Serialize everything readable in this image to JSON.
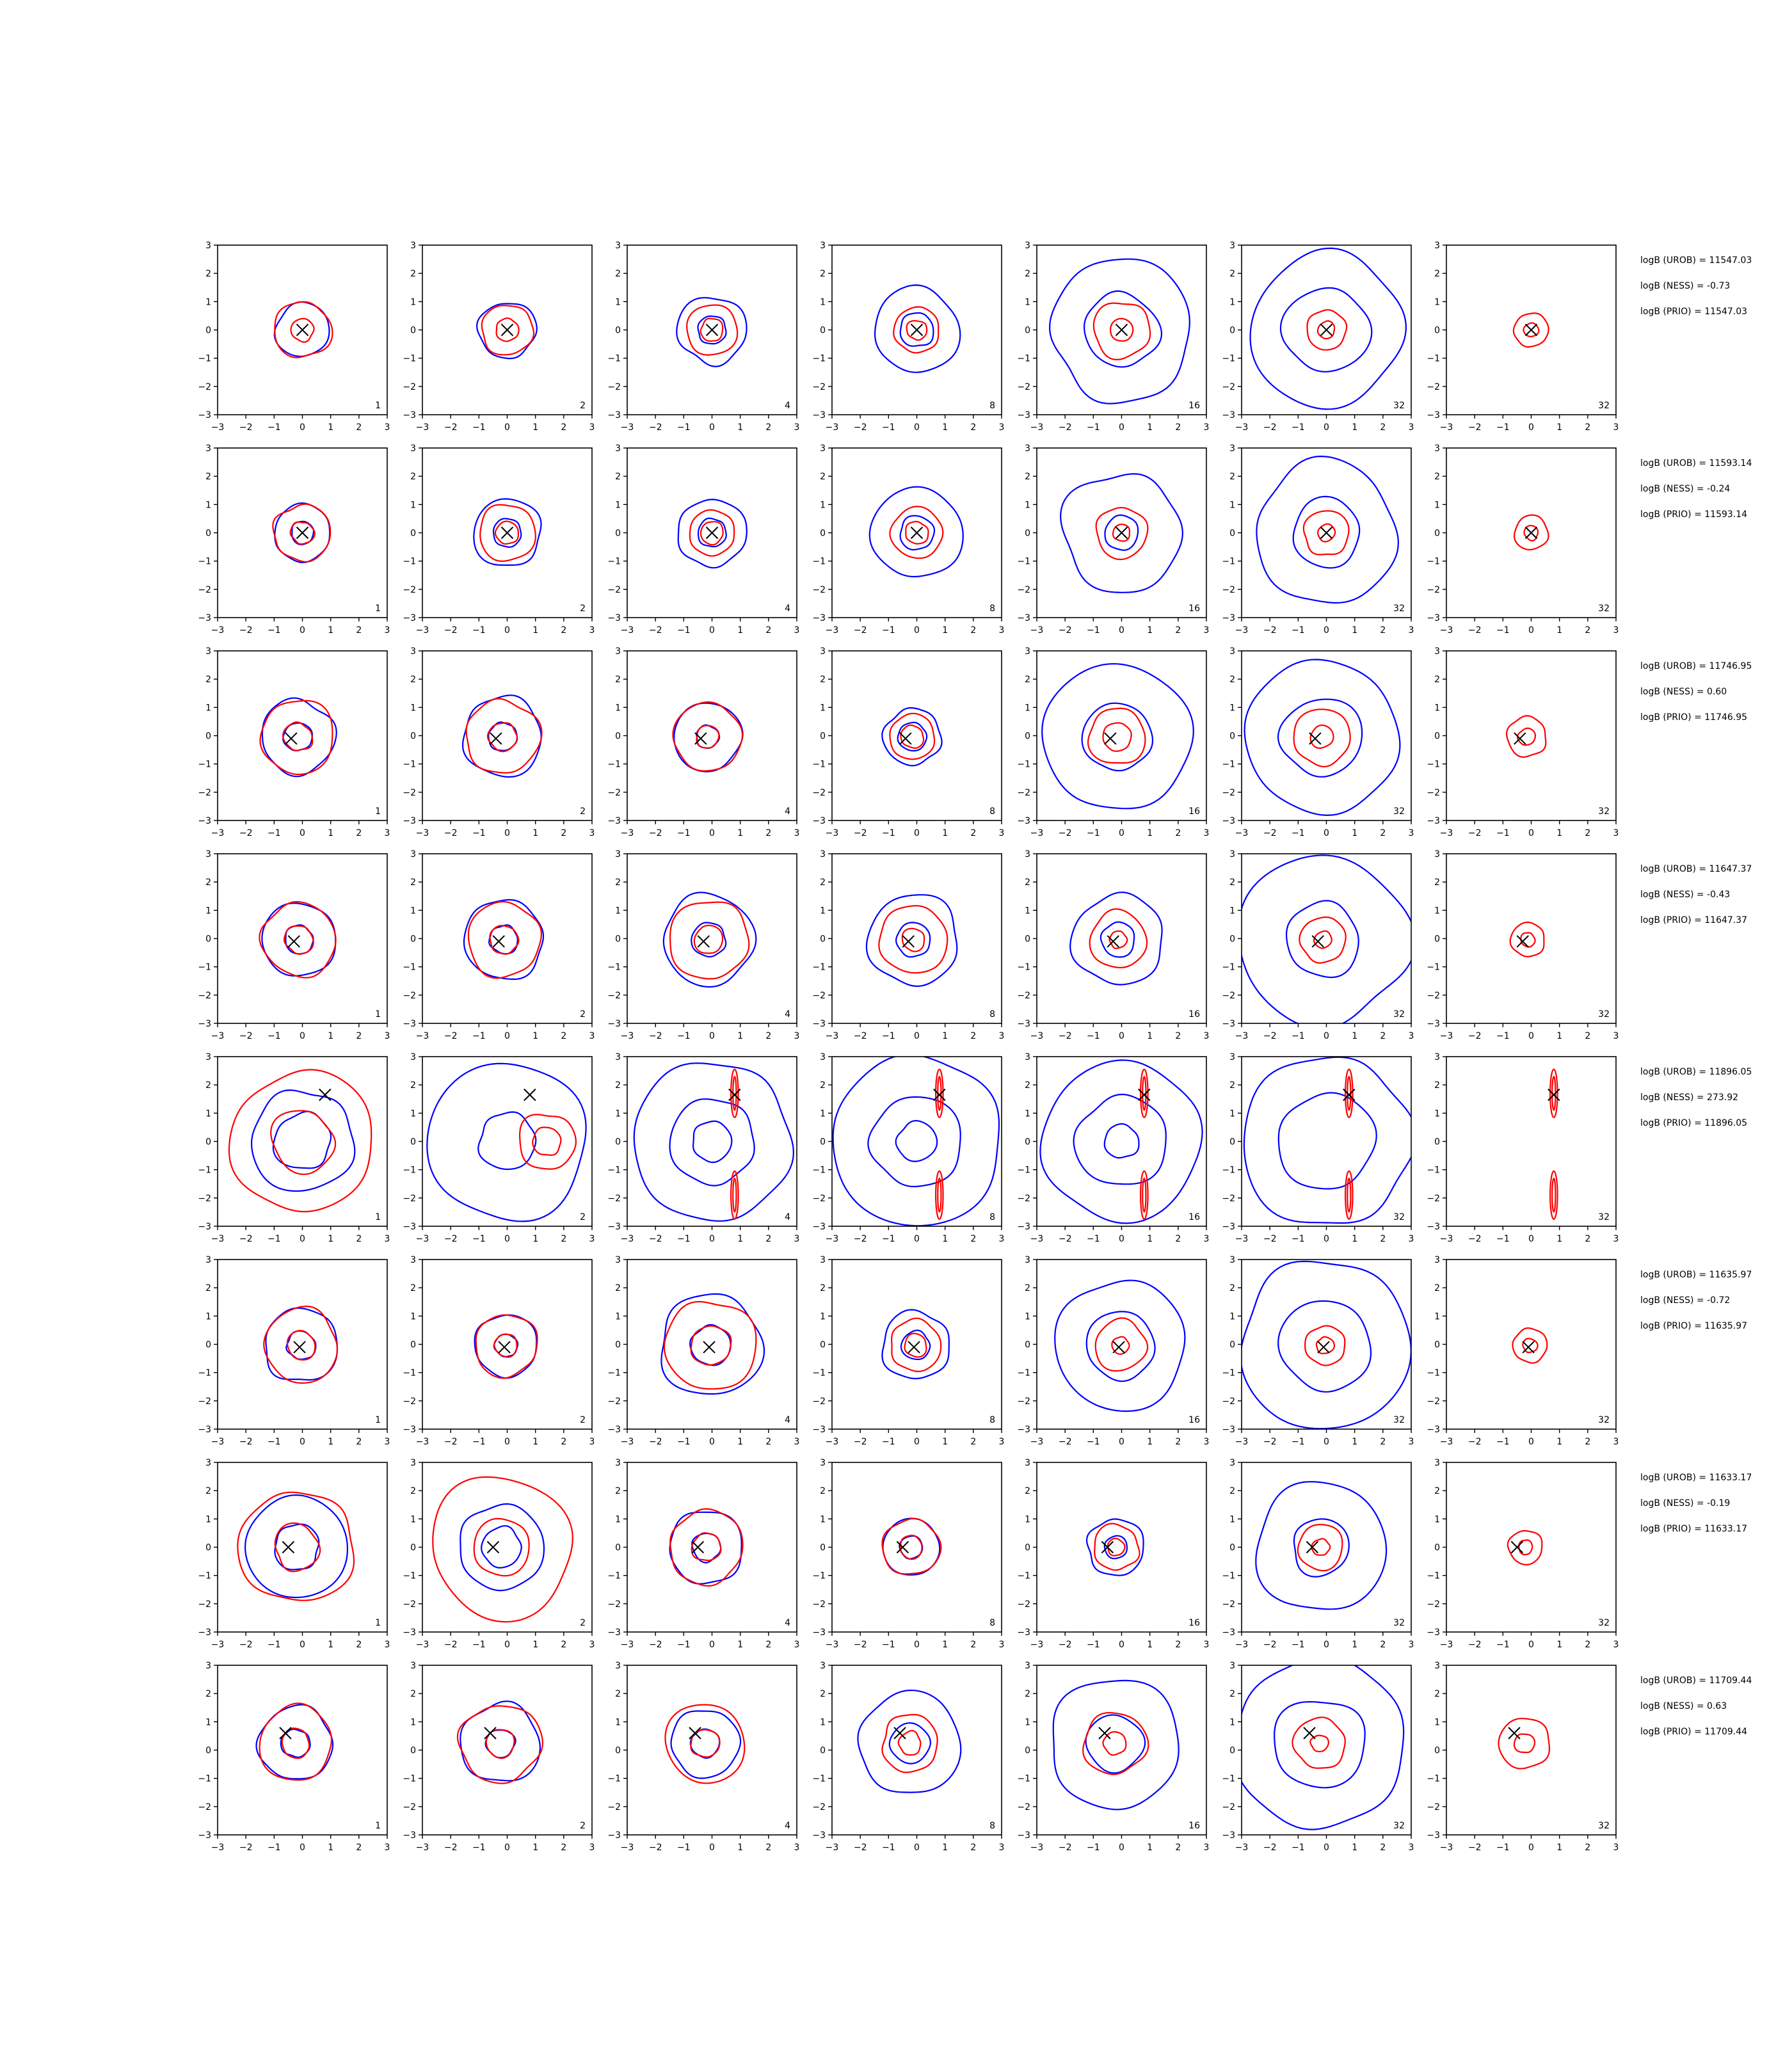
{
  "colors": {
    "blue": "#0000ff",
    "red": "#ff0000",
    "marker": "#000000",
    "axes": "#000000"
  },
  "chart_data": {
    "type": "contour",
    "grid": false,
    "xlim": [
      -3,
      3
    ],
    "ylim": [
      -3,
      3
    ],
    "ticks": [
      "−3",
      "−2",
      "−1",
      "0",
      "1",
      "2",
      "3"
    ],
    "column_labels": [
      "1",
      "2",
      "4",
      "8",
      "16",
      "32",
      "32"
    ],
    "rows": [
      {
        "marker": [
          0,
          0
        ],
        "stats": [
          "logB (UROB) = 11547.03",
          "logB (NESS) = -0.73",
          "logB (PRIO) = 11547.03"
        ],
        "panels": [
          {
            "blue": [
              0.95
            ],
            "red": [
              1.0,
              0.4
            ]
          },
          {
            "blue": [
              1.0
            ],
            "red": [
              0.9,
              0.4
            ]
          },
          {
            "blue": [
              1.2,
              0.5
            ],
            "red": [
              0.9,
              0.4
            ]
          },
          {
            "blue": [
              1.5,
              0.6
            ],
            "red": [
              0.8,
              0.35
            ]
          },
          {
            "blue": [
              2.5,
              1.3
            ],
            "red": [
              1.0,
              0.4
            ]
          },
          {
            "blue": [
              2.7,
              1.5
            ],
            "red": [
              0.7,
              0.3
            ]
          },
          {
            "blue": [],
            "red": [
              0.6,
              0.25
            ]
          }
        ]
      },
      {
        "marker": [
          0,
          0
        ],
        "stats": [
          "logB (UROB) = 11593.14",
          "logB (NESS) = -0.24",
          "logB (PRIO) = 11593.14"
        ],
        "panels": [
          {
            "blue": [
              1.0,
              0.4
            ],
            "red": [
              1.0,
              0.4
            ]
          },
          {
            "blue": [
              1.2,
              0.5
            ],
            "red": [
              1.0,
              0.4
            ]
          },
          {
            "blue": [
              1.2,
              0.5
            ],
            "red": [
              0.8,
              0.4
            ]
          },
          {
            "blue": [
              1.6,
              0.6
            ],
            "red": [
              0.9,
              0.4
            ]
          },
          {
            "blue": [
              2.1,
              0.6
            ],
            "red": [
              0.9,
              0.3
            ]
          },
          {
            "blue": [
              2.5,
              1.2
            ],
            "red": [
              0.8,
              0.3
            ]
          },
          {
            "blue": [],
            "red": [
              0.6,
              0.25
            ]
          }
        ]
      },
      {
        "marker": [
          -0.4,
          -0.1
        ],
        "stats": [
          "logB (UROB) = 11746.95",
          "logB (NESS) = 0.60",
          "logB (PRIO) = 11746.95"
        ],
        "panels": [
          {
            "blue": [
              1.3,
              0.5
            ],
            "red": [
              1.3,
              0.5
            ]
          },
          {
            "blue": [
              1.4,
              0.5
            ],
            "red": [
              1.3,
              0.5
            ]
          },
          {
            "blue": [
              1.2,
              0.4
            ],
            "red": [
              1.2,
              0.4
            ]
          },
          {
            "blue": [
              1.0,
              0.5
            ],
            "red": [
              0.8,
              0.4
            ]
          },
          {
            "blue": [
              2.6,
              1.2
            ],
            "red": [
              1.0,
              0.5
            ]
          },
          {
            "blue": [
              2.7,
              1.4
            ],
            "red": [
              1.0,
              0.4
            ]
          },
          {
            "blue": [],
            "red": [
              0.7,
              0.3
            ]
          }
        ]
      },
      {
        "marker": [
          -0.3,
          -0.1
        ],
        "stats": [
          "logB (UROB) = 11647.37",
          "logB (NESS) = -0.43",
          "logB (PRIO) = 11647.37"
        ],
        "panels": [
          {
            "blue": [
              1.3,
              0.5
            ],
            "red": [
              1.3,
              0.5
            ]
          },
          {
            "blue": [
              1.4,
              0.5
            ],
            "red": [
              1.3,
              0.5
            ]
          },
          {
            "blue": [
              1.6,
              0.6
            ],
            "red": [
              1.4,
              0.5
            ]
          },
          {
            "blue": [
              1.6,
              0.6
            ],
            "red": [
              1.2,
              0.4
            ]
          },
          {
            "blue": [
              1.6,
              0.6
            ],
            "red": [
              1.0,
              0.3
            ]
          },
          {
            "blue": [
              3.0,
              1.3
            ],
            "red": [
              0.8,
              0.3
            ]
          },
          {
            "blue": [],
            "red": [
              0.6,
              0.25
            ]
          }
        ]
      },
      {
        "marker": [
          0.8,
          1.65
        ],
        "stats": [
          "logB (UROB) = 11896.05",
          "logB (NESS) = 273.92",
          "logB (PRIO) = 11896.05"
        ],
        "panels": [
          {
            "blue": [
              1.8,
              1.0
            ],
            "red": [
              2.5,
              1.1
            ]
          },
          {
            "blue": [
              2.8,
              1.0
            ],
            "red": [
              1.0,
              0.5
            ]
          },
          {
            "blue": [
              2.8,
              1.5,
              0.7
            ],
            "red": [
              0.4,
              0.2
            ]
          },
          {
            "blue": [
              3.0,
              1.6,
              0.7
            ],
            "red": [
              0.4,
              0.2
            ]
          },
          {
            "blue": [
              2.8,
              1.6,
              0.6
            ],
            "red": [
              0.4,
              0.2
            ]
          },
          {
            "blue": [
              3.0,
              1.7
            ],
            "red": [
              0.4,
              0.2
            ]
          },
          {
            "blue": [],
            "red": [
              0.4,
              0.2
            ]
          }
        ]
      },
      {
        "marker": [
          -0.1,
          -0.1
        ],
        "stats": [
          "logB (UROB) = 11635.97",
          "logB (NESS) = -0.72",
          "logB (PRIO) = 11635.97"
        ],
        "panels": [
          {
            "blue": [
              1.3,
              0.5
            ],
            "red": [
              1.3,
              0.5
            ]
          },
          {
            "blue": [
              1.1,
              0.4
            ],
            "red": [
              1.1,
              0.4
            ]
          },
          {
            "blue": [
              1.8,
              0.7
            ],
            "red": [
              1.6,
              0.7
            ]
          },
          {
            "blue": [
              1.2,
              0.5
            ],
            "red": [
              0.9,
              0.4
            ]
          },
          {
            "blue": [
              2.3,
              1.2
            ],
            "red": [
              0.9,
              0.3
            ]
          },
          {
            "blue": [
              3.0,
              1.6
            ],
            "red": [
              0.7,
              0.3
            ]
          },
          {
            "blue": [],
            "red": [
              0.6,
              0.25
            ]
          }
        ]
      },
      {
        "marker": [
          -0.5,
          0
        ],
        "stats": [
          "logB (UROB) = 11633.17",
          "logB (NESS) = -0.19",
          "logB (PRIO) = 11633.17"
        ],
        "panels": [
          {
            "blue": [
              1.8,
              0.8
            ],
            "red": [
              2.0,
              0.8
            ]
          },
          {
            "blue": [
              1.5,
              0.7
            ],
            "red": [
              2.5,
              1.0
            ]
          },
          {
            "blue": [
              1.3,
              0.5
            ],
            "red": [
              1.3,
              0.5
            ]
          },
          {
            "blue": [
              1.0,
              0.4
            ],
            "red": [
              1.0,
              0.4
            ]
          },
          {
            "blue": [
              1.0,
              0.4
            ],
            "red": [
              0.8,
              0.3
            ]
          },
          {
            "blue": [
              2.3,
              1.0
            ],
            "red": [
              0.8,
              0.3
            ]
          },
          {
            "blue": [],
            "red": [
              0.6,
              0.25
            ]
          }
        ]
      },
      {
        "marker": [
          -0.6,
          0.6
        ],
        "stats": [
          "logB (UROB) = 11709.44",
          "logB (NESS) = 0.63",
          "logB (PRIO) = 11709.44"
        ],
        "panels": [
          {
            "blue": [
              1.3,
              0.5
            ],
            "red": [
              1.3,
              0.5
            ]
          },
          {
            "blue": [
              1.4,
              0.5
            ],
            "red": [
              1.4,
              0.5
            ]
          },
          {
            "blue": [
              1.2,
              0.5
            ],
            "red": [
              1.4,
              0.5
            ]
          },
          {
            "blue": [
              1.8,
              0.7
            ],
            "red": [
              1.0,
              0.4
            ]
          },
          {
            "blue": [
              2.3,
              1.0
            ],
            "red": [
              1.1,
              0.4
            ]
          },
          {
            "blue": [
              3.0,
              1.6
            ],
            "red": [
              0.9,
              0.3
            ]
          },
          {
            "blue": [],
            "red": [
              0.9,
              0.35
            ]
          }
        ]
      }
    ]
  }
}
